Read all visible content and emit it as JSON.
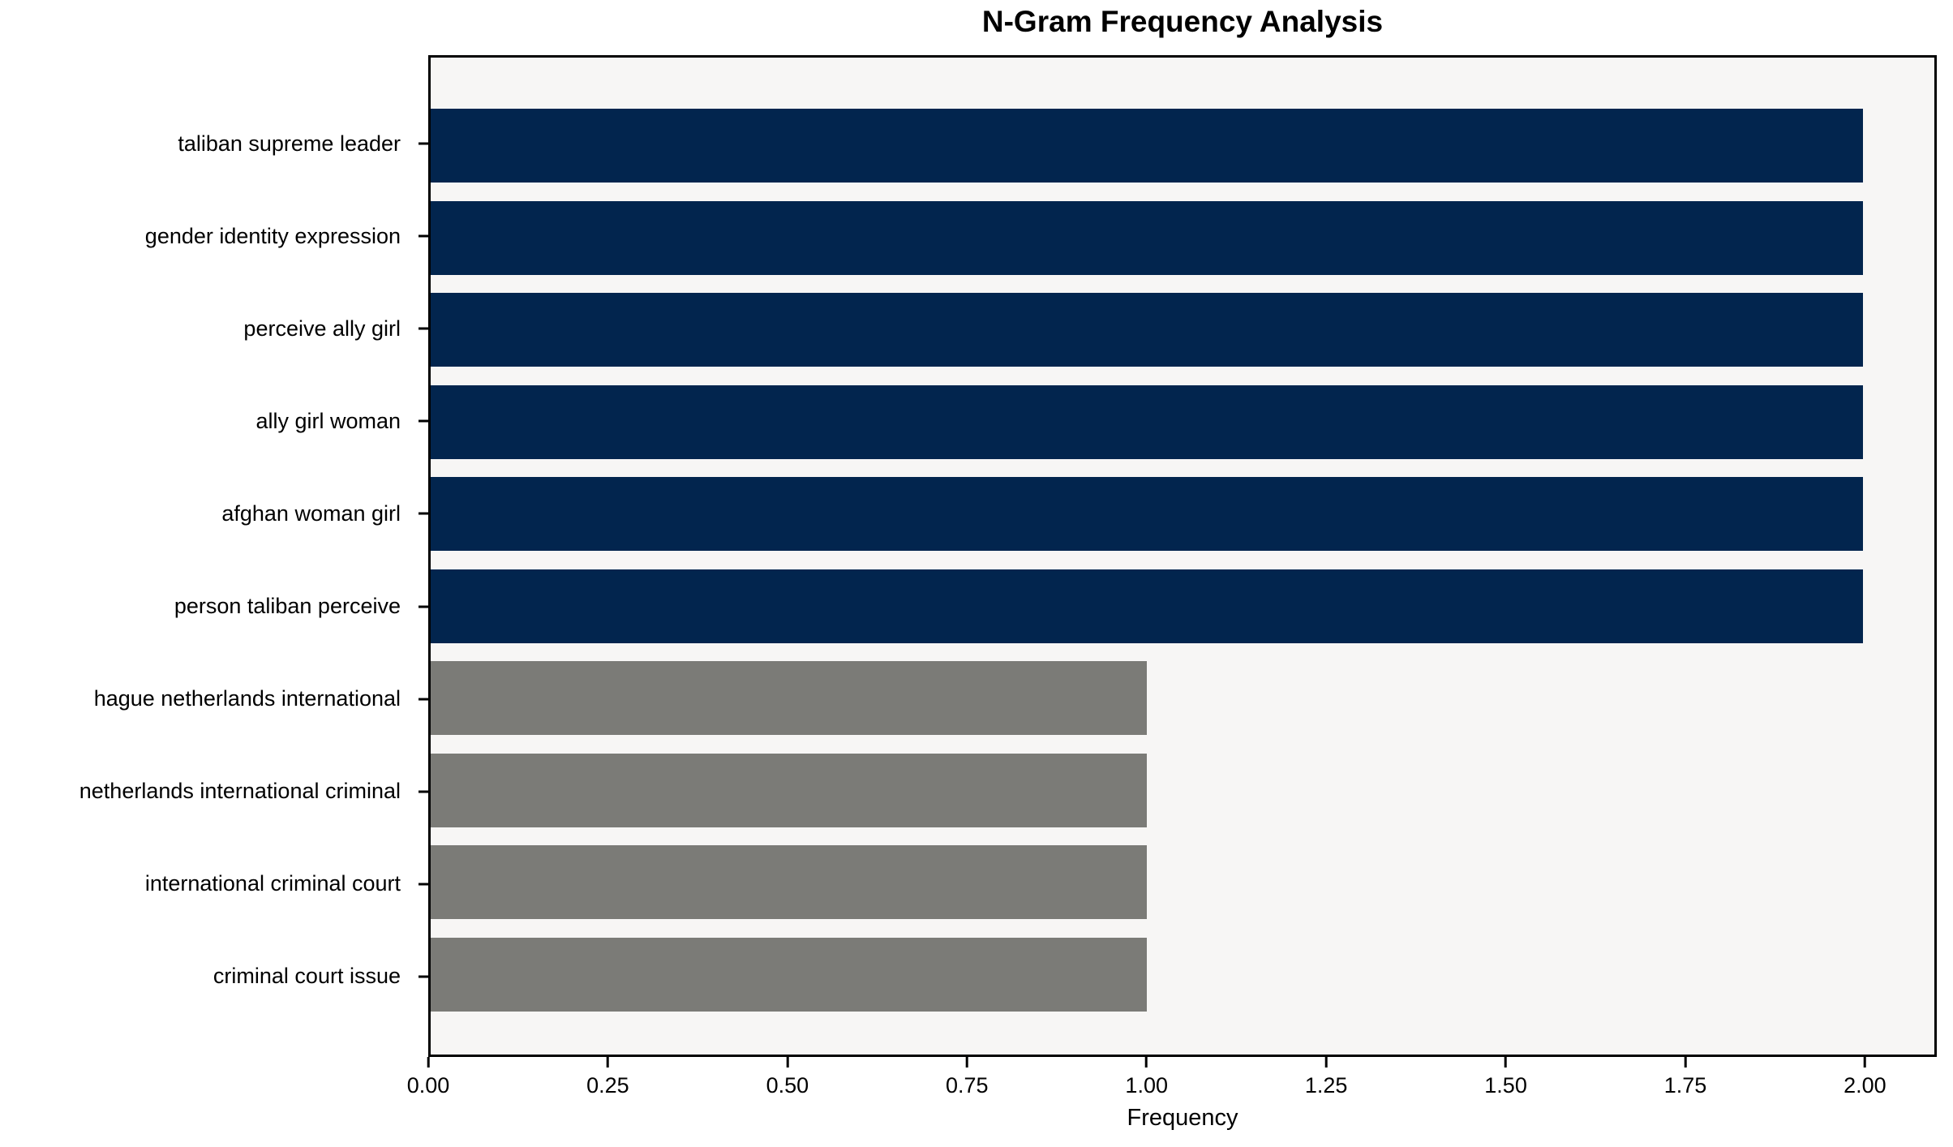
{
  "chart_data": {
    "type": "bar",
    "orientation": "horizontal",
    "title": "N-Gram Frequency Analysis",
    "xlabel": "Frequency",
    "ylabel": "",
    "categories": [
      "taliban supreme leader",
      "gender identity expression",
      "perceive ally girl",
      "ally girl woman",
      "afghan woman girl",
      "person taliban perceive",
      "hague netherlands international",
      "netherlands international criminal",
      "international criminal court",
      "criminal court issue"
    ],
    "values": [
      2,
      2,
      2,
      2,
      2,
      2,
      1,
      1,
      1,
      1
    ],
    "bar_colors": [
      "#02254e",
      "#02254e",
      "#02254e",
      "#02254e",
      "#02254e",
      "#02254e",
      "#7b7b77",
      "#7b7b77",
      "#7b7b77",
      "#7b7b77"
    ],
    "xlim": [
      0,
      2.1
    ],
    "xticks": [
      "0.00",
      "0.25",
      "0.50",
      "0.75",
      "1.00",
      "1.25",
      "1.50",
      "1.75",
      "2.00"
    ],
    "xtick_values": [
      0,
      0.25,
      0.5,
      0.75,
      1.0,
      1.25,
      1.5,
      1.75,
      2.0
    ],
    "grid": false,
    "legend_position": "none",
    "colors": {
      "bar_high": "#02254e",
      "bar_low": "#7b7b77",
      "plot_background": "#f7f6f5",
      "figure_background": "#ffffff",
      "axis": "#000000"
    }
  }
}
